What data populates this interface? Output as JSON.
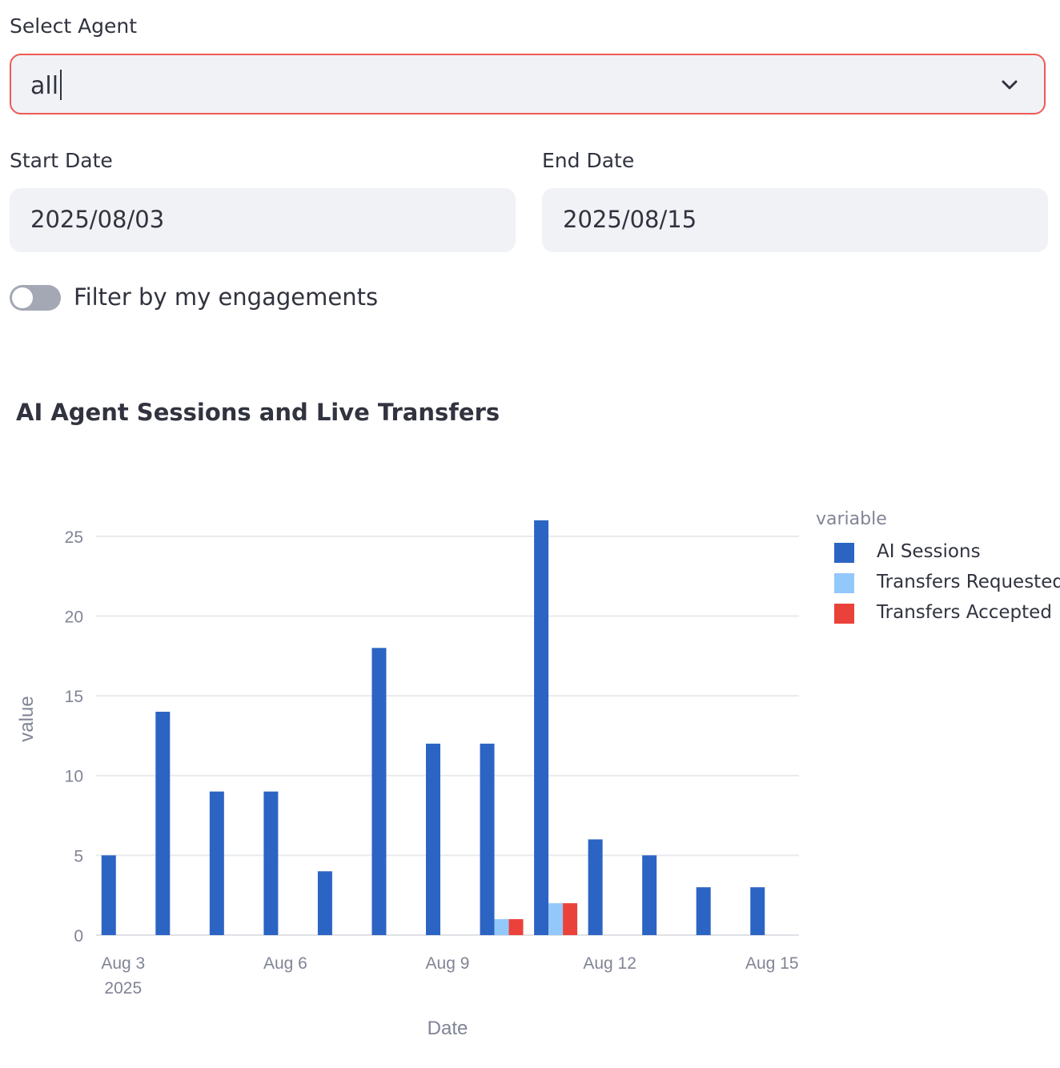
{
  "filters": {
    "agent_label": "Select Agent",
    "agent_value": "all",
    "start_label": "Start Date",
    "start_value": "2025/08/03",
    "end_label": "End Date",
    "end_value": "2025/08/15",
    "toggle_label": "Filter by my engagements",
    "toggle_on": false
  },
  "chart_data": {
    "type": "bar",
    "title": "AI Agent Sessions and Live Transfers",
    "xlabel": "Date",
    "ylabel": "value",
    "ylim": [
      0,
      27.5
    ],
    "yticks": [
      0,
      5,
      10,
      15,
      20,
      25
    ],
    "grid": true,
    "legend_title": "variable",
    "legend_position": "right",
    "x": [
      "2025-08-03",
      "2025-08-04",
      "2025-08-05",
      "2025-08-06",
      "2025-08-07",
      "2025-08-08",
      "2025-08-09",
      "2025-08-10",
      "2025-08-11",
      "2025-08-12",
      "2025-08-13",
      "2025-08-14",
      "2025-08-15"
    ],
    "xtick_labels": [
      {
        "date": "2025-08-03",
        "label": "Aug 3",
        "sublabel": "2025"
      },
      {
        "date": "2025-08-06",
        "label": "Aug 6",
        "sublabel": ""
      },
      {
        "date": "2025-08-09",
        "label": "Aug 9",
        "sublabel": ""
      },
      {
        "date": "2025-08-12",
        "label": "Aug 12",
        "sublabel": ""
      },
      {
        "date": "2025-08-15",
        "label": "Aug 15",
        "sublabel": ""
      }
    ],
    "series": [
      {
        "name": "AI Sessions",
        "color": "#2c64c3",
        "values": [
          5,
          14,
          9,
          9,
          4,
          18,
          12,
          12,
          26,
          6,
          5,
          3,
          3
        ]
      },
      {
        "name": "Transfers Requested",
        "color": "#93c8fb",
        "values": [
          0,
          0,
          0,
          0,
          0,
          0,
          0,
          1,
          2,
          0,
          0,
          0,
          0
        ]
      },
      {
        "name": "Transfers Accepted",
        "color": "#ea423b",
        "values": [
          0,
          0,
          0,
          0,
          0,
          0,
          0,
          1,
          2,
          0,
          0,
          0,
          0
        ]
      }
    ]
  }
}
